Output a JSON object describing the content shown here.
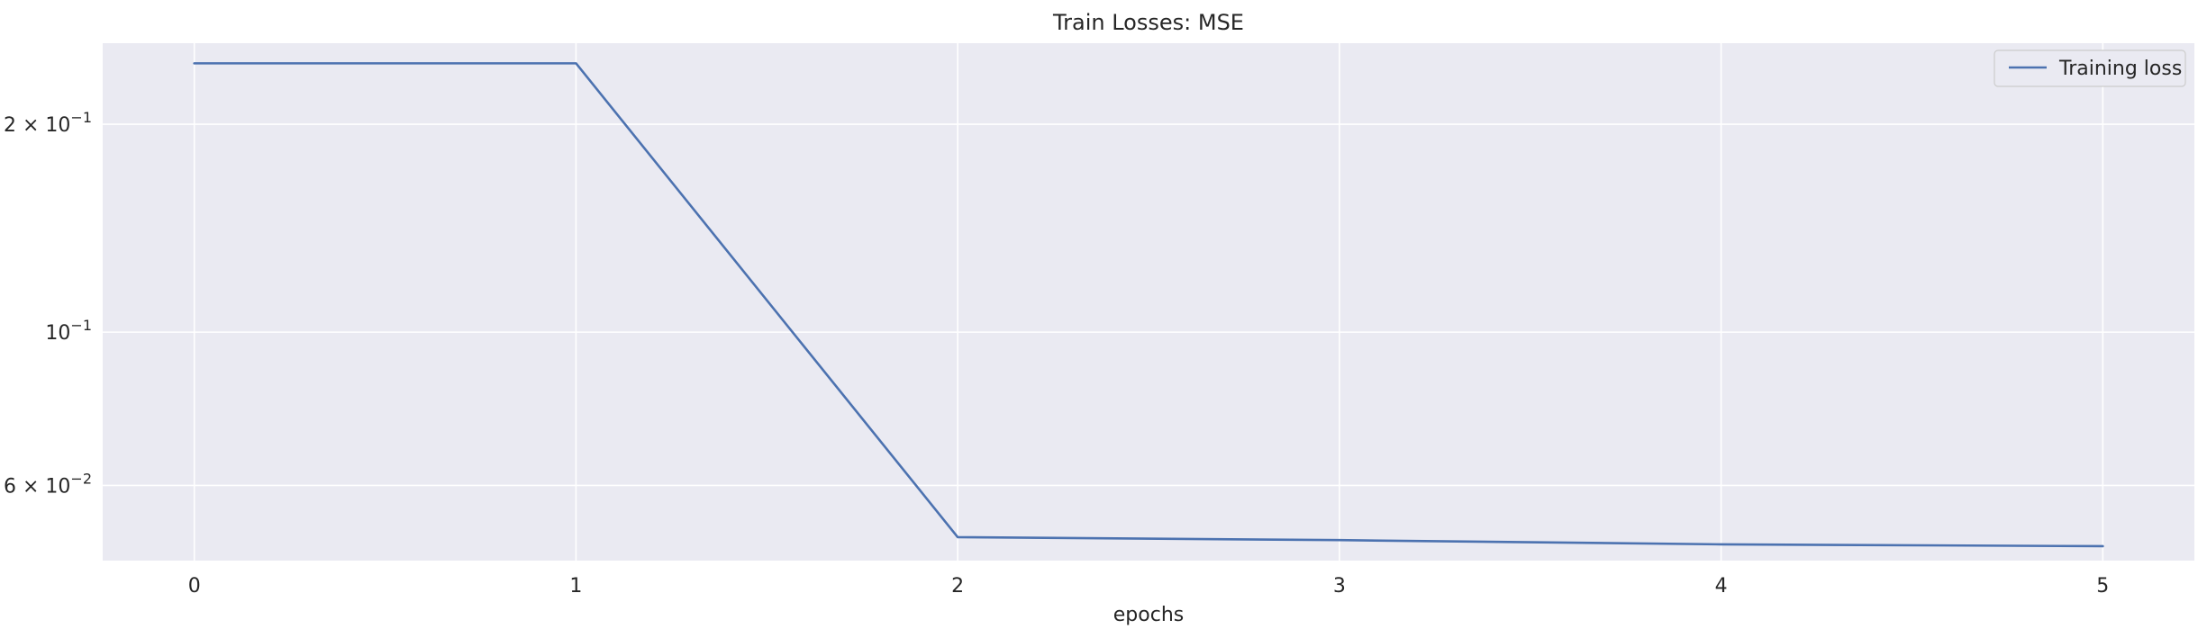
{
  "chart_data": {
    "type": "line",
    "title": "Train Losses:  MSE",
    "xlabel": "epochs",
    "ylabel": "",
    "x": [
      0,
      1,
      2,
      3,
      4,
      5
    ],
    "xlim": [
      -0.24,
      5.24
    ],
    "xticks": [
      0,
      1,
      2,
      3,
      4,
      5
    ],
    "yscale": "log",
    "ylim": [
      0.0467,
      0.262
    ],
    "yticks": [
      {
        "value": 0.2,
        "label_base": "2 × 10",
        "label_exp": "−1"
      },
      {
        "value": 0.1,
        "label_base": "10",
        "label_exp": "−1"
      },
      {
        "value": 0.06,
        "label_base": "6 × 10",
        "label_exp": "−2"
      }
    ],
    "grid": true,
    "legend_position": "top-right",
    "background_color": "#eaeaf2",
    "series": [
      {
        "name": "Training loss",
        "color": "#4c72b0",
        "values": [
          0.245,
          0.245,
          0.0505,
          0.05,
          0.0493,
          0.049
        ]
      }
    ]
  }
}
